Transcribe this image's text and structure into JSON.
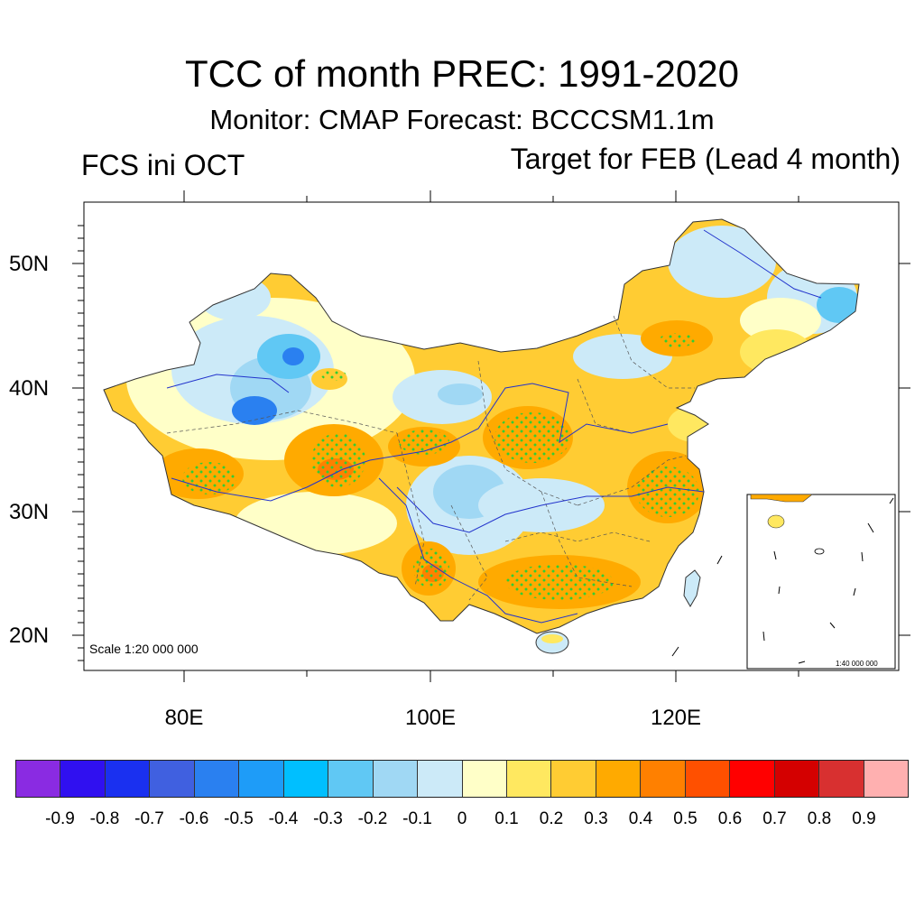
{
  "title": "TCC of month PREC: 1991-2020",
  "subtitle": "Monitor: CMAP   Forecast: BCCCSM1.1m",
  "left_label": "FCS ini OCT",
  "right_label": "Target for FEB (Lead 4 month)",
  "map": {
    "lat_ticks": [
      "50N",
      "40N",
      "30N",
      "20N"
    ],
    "lon_ticks": [
      "80E",
      "100E",
      "120E"
    ],
    "scale_label": "Scale 1:20 000 000",
    "inset_scale_label": "1:40 000 000",
    "significance_marker_color": "#33cc33"
  },
  "colorbar": {
    "colors": [
      "#8a2be2",
      "#3010f0",
      "#1a30f0",
      "#4060e0",
      "#2a80f0",
      "#1e9cf8",
      "#00bfff",
      "#60c8f4",
      "#a0d8f4",
      "#cceaf8",
      "#ffffc8",
      "#ffe860",
      "#ffcc33",
      "#ffaa00",
      "#ff8000",
      "#ff5000",
      "#ff0000",
      "#d40000",
      "#d83030",
      "#ffb0b0"
    ],
    "labels": [
      "-0.9",
      "-0.8",
      "-0.7",
      "-0.6",
      "-0.5",
      "-0.4",
      "-0.3",
      "-0.2",
      "-0.1",
      "0",
      "0.1",
      "0.2",
      "0.3",
      "0.4",
      "0.5",
      "0.6",
      "0.7",
      "0.8",
      "0.9"
    ]
  }
}
